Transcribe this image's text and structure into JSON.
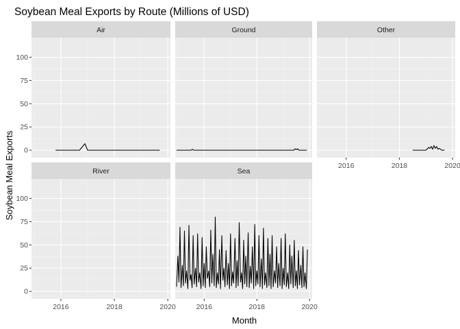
{
  "chart_data": {
    "type": "line",
    "title": "Soybean Meal Exports by Route (Millions of USD)",
    "xlabel": "Month",
    "ylabel": "Soybean Meal Exports",
    "ylim": [
      -8,
      121
    ],
    "xlim": [
      2014.9,
      2020.1
    ],
    "y_ticks": [
      0,
      25,
      50,
      75,
      100
    ],
    "x_ticks": [
      2016,
      2018,
      2020
    ],
    "grid": true,
    "legend": "none",
    "facets": [
      {
        "name": "Air",
        "x": [
          2015.8,
          2016.7,
          2016.9,
          2017.0,
          2019.7
        ],
        "y": [
          0,
          0,
          7,
          0,
          0
        ]
      },
      {
        "name": "Ground",
        "x": [
          2014.95,
          2015.5,
          2015.55,
          2015.6,
          2019.4,
          2019.45,
          2019.5,
          2019.55,
          2019.6,
          2019.9
        ],
        "y": [
          0,
          0,
          1,
          0,
          0,
          1.5,
          0.5,
          1.5,
          0,
          0
        ]
      },
      {
        "name": "Other",
        "x": [
          2018.5,
          2019.0,
          2019.1,
          2019.15,
          2019.2,
          2019.25,
          2019.3,
          2019.35,
          2019.4,
          2019.45,
          2019.5,
          2019.6,
          2019.7
        ],
        "y": [
          0,
          0,
          3,
          2,
          4,
          1,
          5,
          2,
          4,
          1,
          2,
          0,
          0
        ]
      },
      {
        "name": "River",
        "x": [],
        "y": []
      },
      {
        "name": "Sea",
        "x": [
          2014.95,
          2015.0,
          2015.04,
          2015.08,
          2015.12,
          2015.17,
          2015.21,
          2015.25,
          2015.29,
          2015.33,
          2015.38,
          2015.42,
          2015.46,
          2015.5,
          2015.54,
          2015.58,
          2015.62,
          2015.67,
          2015.71,
          2015.75,
          2015.79,
          2015.83,
          2015.88,
          2015.92,
          2015.96,
          2016.0,
          2016.04,
          2016.08,
          2016.12,
          2016.17,
          2016.21,
          2016.25,
          2016.29,
          2016.33,
          2016.38,
          2016.42,
          2016.46,
          2016.5,
          2016.54,
          2016.58,
          2016.62,
          2016.67,
          2016.71,
          2016.75,
          2016.79,
          2016.83,
          2016.88,
          2016.92,
          2016.96,
          2017.0,
          2017.04,
          2017.08,
          2017.12,
          2017.17,
          2017.21,
          2017.25,
          2017.29,
          2017.33,
          2017.38,
          2017.42,
          2017.46,
          2017.5,
          2017.54,
          2017.58,
          2017.62,
          2017.67,
          2017.71,
          2017.75,
          2017.79,
          2017.83,
          2017.88,
          2017.92,
          2017.96,
          2018.0,
          2018.04,
          2018.08,
          2018.12,
          2018.17,
          2018.21,
          2018.25,
          2018.29,
          2018.33,
          2018.38,
          2018.42,
          2018.46,
          2018.5,
          2018.54,
          2018.58,
          2018.62,
          2018.67,
          2018.71,
          2018.75,
          2018.79,
          2018.83,
          2018.88,
          2018.92,
          2018.96,
          2019.0,
          2019.04,
          2019.08,
          2019.12,
          2019.17,
          2019.21,
          2019.25,
          2019.29,
          2019.33,
          2019.38,
          2019.42,
          2019.46,
          2019.5,
          2019.54,
          2019.58,
          2019.62,
          2019.67,
          2019.71,
          2019.75,
          2019.79,
          2019.83,
          2019.88,
          2019.92
        ],
        "y": [
          5,
          38,
          10,
          69,
          4,
          28,
          6,
          65,
          9,
          22,
          3,
          71,
          12,
          18,
          4,
          60,
          8,
          25,
          5,
          62,
          10,
          20,
          3,
          58,
          6,
          30,
          4,
          48,
          14,
          22,
          5,
          66,
          9,
          40,
          6,
          80,
          4,
          20,
          8,
          45,
          3,
          60,
          12,
          25,
          5,
          44,
          7,
          30,
          3,
          62,
          6,
          21,
          9,
          57,
          4,
          33,
          6,
          74,
          10,
          20,
          3,
          55,
          8,
          38,
          5,
          63,
          4,
          27,
          9,
          48,
          3,
          72,
          6,
          22,
          8,
          60,
          5,
          35,
          3,
          68,
          7,
          20,
          4,
          57,
          6,
          40,
          3,
          60,
          5,
          22,
          9,
          48,
          4,
          30,
          6,
          57,
          3,
          25,
          7,
          62,
          5,
          20,
          3,
          50,
          8,
          38,
          4,
          55,
          6,
          22,
          3,
          44,
          7,
          28,
          4,
          48,
          5,
          20,
          3,
          45
        ]
      }
    ]
  }
}
